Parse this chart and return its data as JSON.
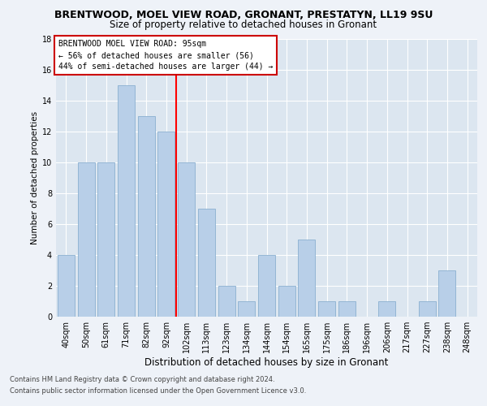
{
  "title1": "BRENTWOOD, MOEL VIEW ROAD, GRONANT, PRESTATYN, LL19 9SU",
  "title2": "Size of property relative to detached houses in Gronant",
  "xlabel": "Distribution of detached houses by size in Gronant",
  "ylabel": "Number of detached properties",
  "categories": [
    "40sqm",
    "50sqm",
    "61sqm",
    "71sqm",
    "82sqm",
    "92sqm",
    "102sqm",
    "113sqm",
    "123sqm",
    "134sqm",
    "144sqm",
    "154sqm",
    "165sqm",
    "175sqm",
    "186sqm",
    "196sqm",
    "206sqm",
    "217sqm",
    "227sqm",
    "238sqm",
    "248sqm"
  ],
  "values": [
    4,
    10,
    10,
    15,
    13,
    12,
    10,
    7,
    2,
    1,
    4,
    2,
    5,
    1,
    1,
    0,
    1,
    0,
    1,
    3,
    0
  ],
  "bar_color": "#b8cfe8",
  "bar_edge_color": "#8ab0d0",
  "vline_color": "red",
  "vline_x": 6,
  "ylim": [
    0,
    18
  ],
  "yticks": [
    0,
    2,
    4,
    6,
    8,
    10,
    12,
    14,
    16,
    18
  ],
  "annotation_title": "BRENTWOOD MOEL VIEW ROAD: 95sqm",
  "annotation_line1": "← 56% of detached houses are smaller (56)",
  "annotation_line2": "44% of semi-detached houses are larger (44) →",
  "annotation_box_color": "white",
  "annotation_box_edge": "#cc0000",
  "footer1": "Contains HM Land Registry data © Crown copyright and database right 2024.",
  "footer2": "Contains public sector information licensed under the Open Government Licence v3.0.",
  "bg_color": "#eef2f8",
  "plot_bg_color": "#dce6f0",
  "grid_color": "#ffffff",
  "title1_fontsize": 9,
  "title2_fontsize": 8.5,
  "ylabel_fontsize": 7.5,
  "xlabel_fontsize": 8.5,
  "tick_fontsize": 7,
  "ann_fontsize": 7,
  "footer_fontsize": 6
}
